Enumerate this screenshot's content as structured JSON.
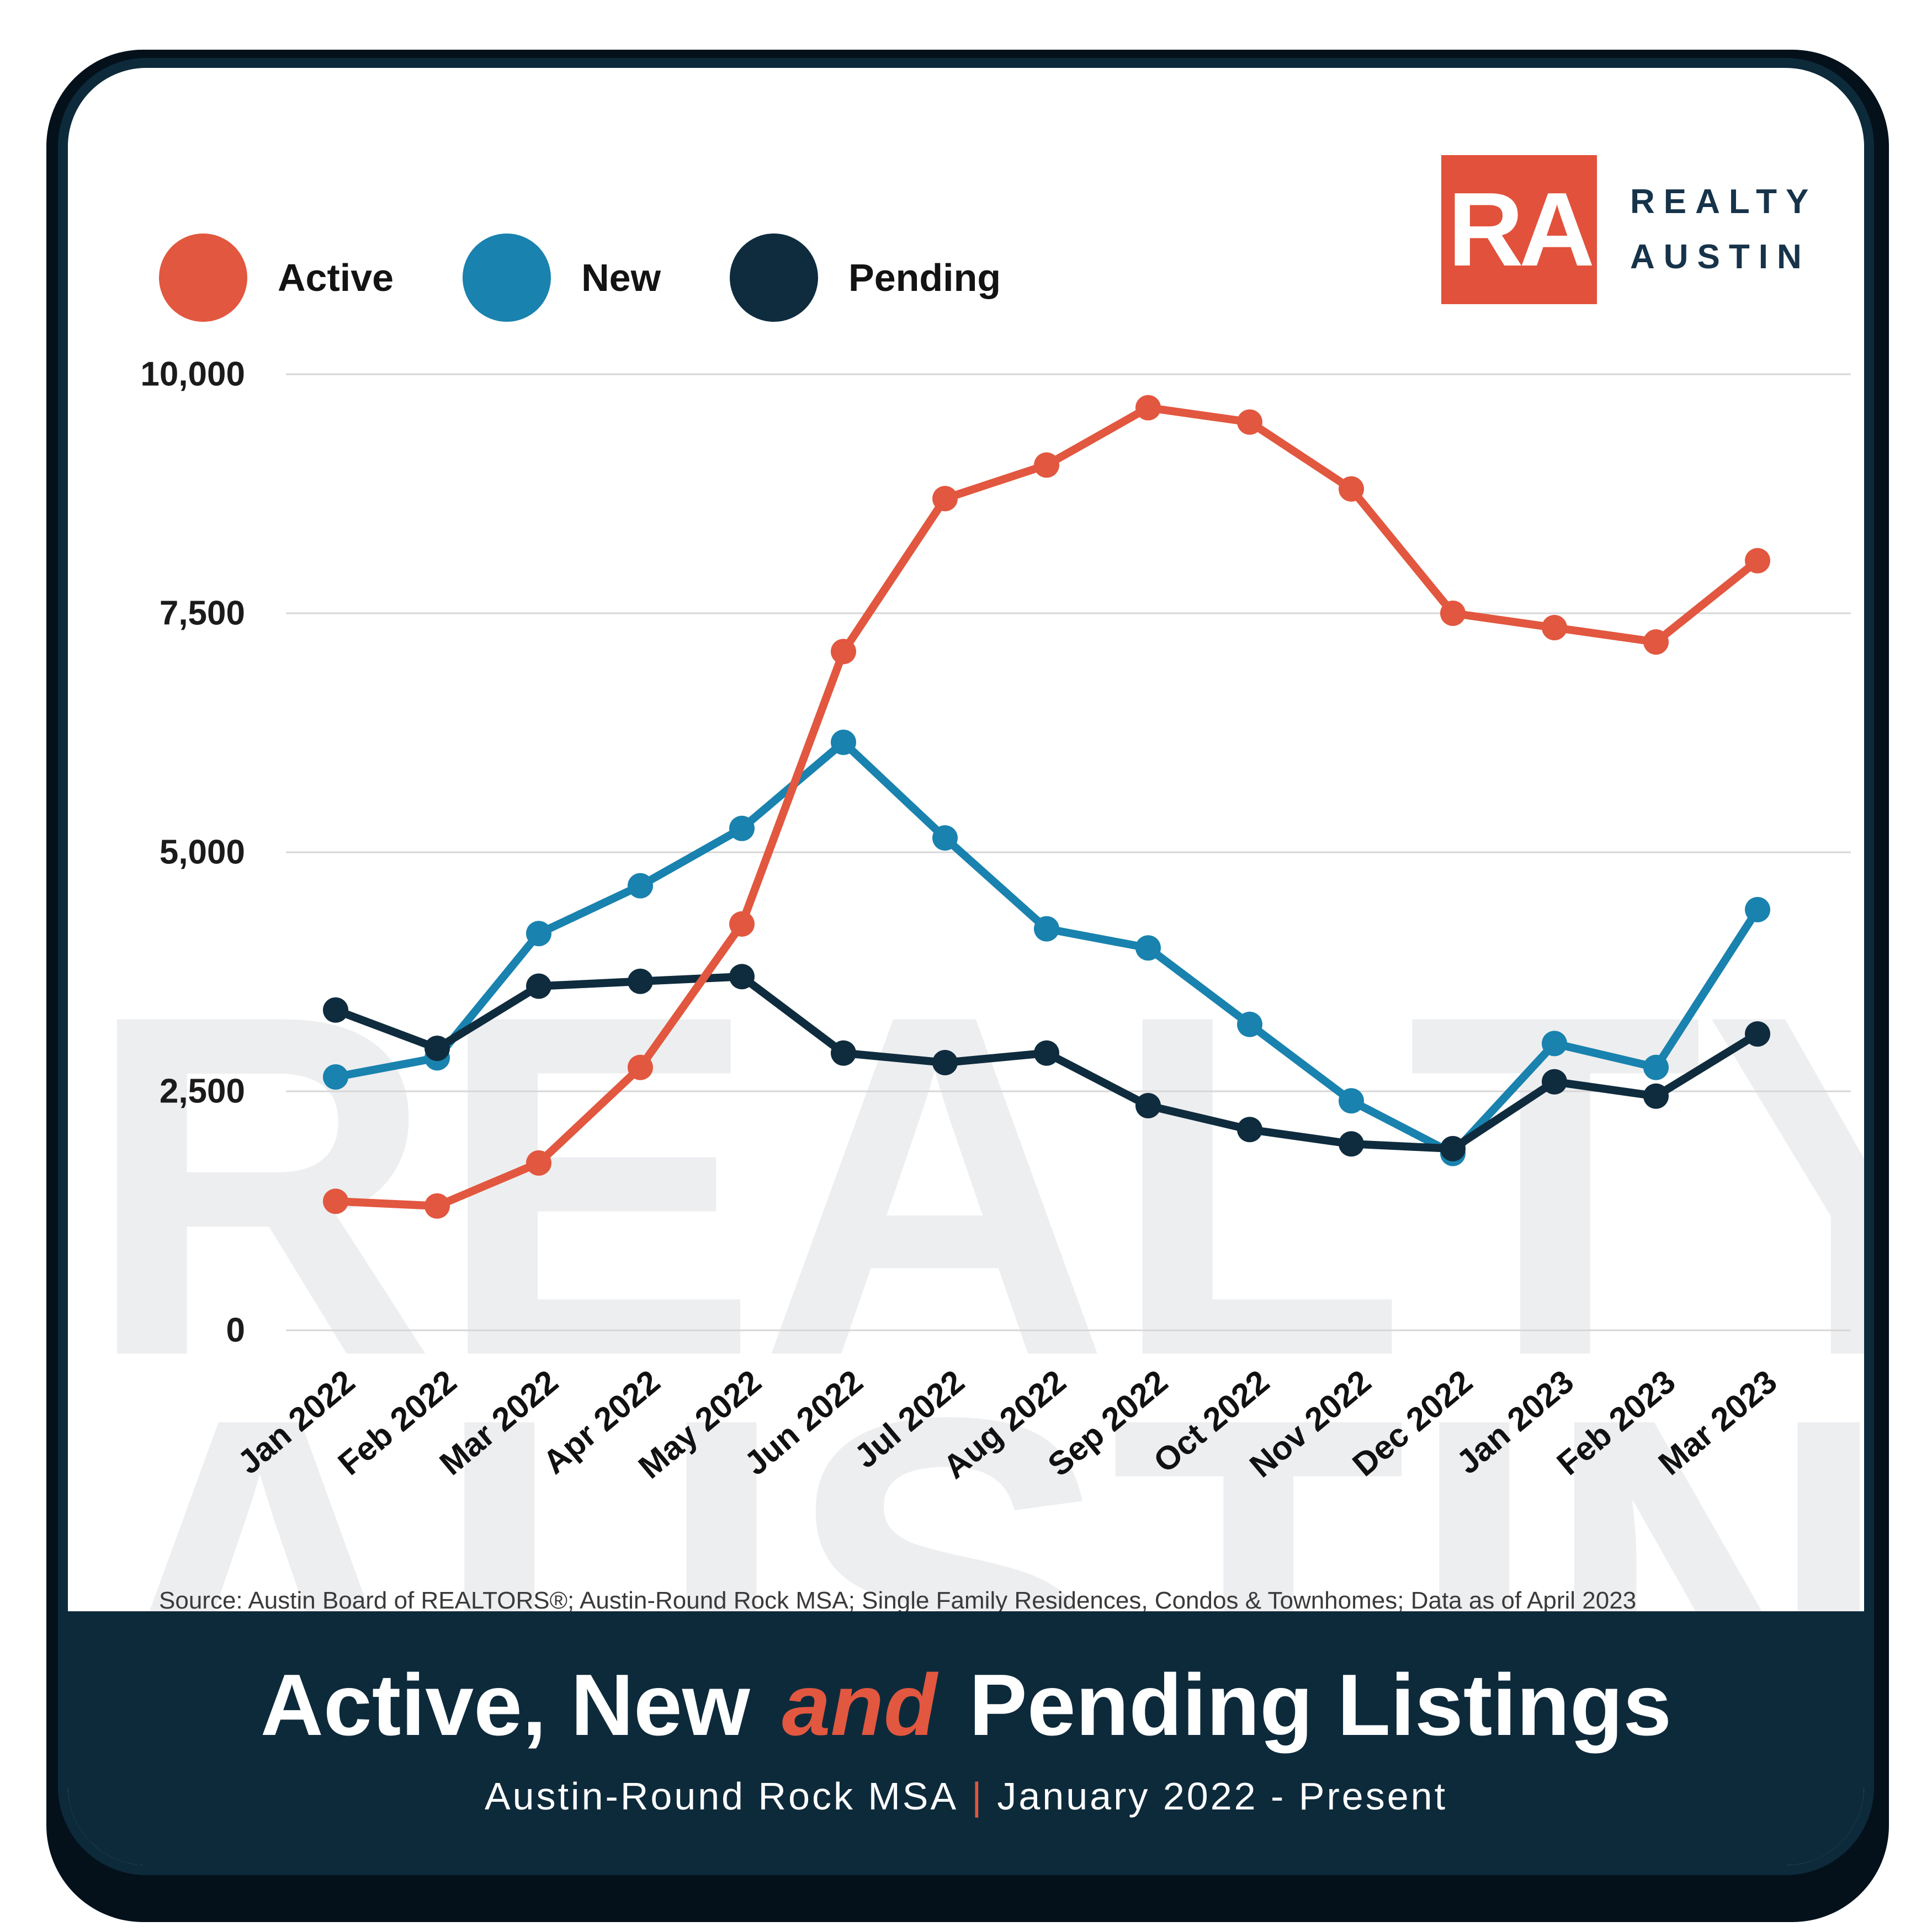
{
  "legend": {
    "items": [
      {
        "label": "Active",
        "color": "#E2573F"
      },
      {
        "label": "New",
        "color": "#1982AE"
      },
      {
        "label": "Pending",
        "color": "#0F2C3E"
      }
    ]
  },
  "logo": {
    "monogram": "RA",
    "wordmark_line1": "REALTY",
    "wordmark_line2": "AUSTIN",
    "square_color": "#E2513B"
  },
  "watermark": {
    "line1": "REALTY",
    "line2": "AUSTIN",
    "color": "#EDEEF0"
  },
  "source_text": "Source: Austin Board of REALTORS®; Austin-Round Rock MSA; Single Family Residences, Condos & Townhomes; Data as of April 2023",
  "footer": {
    "title_before": "Active, New",
    "title_and": "and",
    "title_after": "Pending Listings",
    "subtitle_area": "Austin-Round Rock MSA",
    "subtitle_pipe": "|",
    "subtitle_range": "January 2022 - Present",
    "background": "#0D2A3B",
    "accent": "#E2573F"
  },
  "chart_data": {
    "type": "line",
    "title": "Active, New and Pending Listings",
    "subtitle": "Austin-Round Rock MSA | January 2022 - Present",
    "categories": [
      "Jan 2022",
      "Feb 2022",
      "Mar 2022",
      "Apr 2022",
      "May 2022",
      "Jun 2022",
      "Jul 2022",
      "Aug 2022",
      "Sep 2022",
      "Oct 2022",
      "Nov 2022",
      "Dec 2022",
      "Jan 2023",
      "Feb 2023",
      "Mar 2023"
    ],
    "series": [
      {
        "name": "Active",
        "color": "#E2573F",
        "values": [
          1350,
          1300,
          1750,
          2750,
          4250,
          7100,
          8700,
          9050,
          9650,
          9500,
          8800,
          7500,
          7350,
          7200,
          8050
        ]
      },
      {
        "name": "New",
        "color": "#1982AE",
        "values": [
          2650,
          2850,
          4150,
          4650,
          5250,
          6150,
          5150,
          4200,
          4000,
          3200,
          2400,
          1850,
          3000,
          2750,
          4400
        ]
      },
      {
        "name": "Pending",
        "color": "#0F2C3E",
        "values": [
          3350,
          2950,
          3600,
          3650,
          3700,
          2900,
          2800,
          2900,
          2350,
          2100,
          1950,
          1900,
          2600,
          2450,
          3100
        ]
      }
    ],
    "draw_order": [
      "New",
      "Pending",
      "Active"
    ],
    "xlabel": "",
    "ylabel": "",
    "ylim": [
      0,
      10000
    ],
    "yticks": [
      0,
      2500,
      5000,
      7500,
      10000
    ],
    "ytick_labels": [
      "0",
      "2,500",
      "5,000",
      "7,500",
      "10,000"
    ],
    "grid": "horizontal",
    "gridline_color": "#D7D7D7",
    "legend_position": "top-left",
    "x_tick_angle": -40
  }
}
